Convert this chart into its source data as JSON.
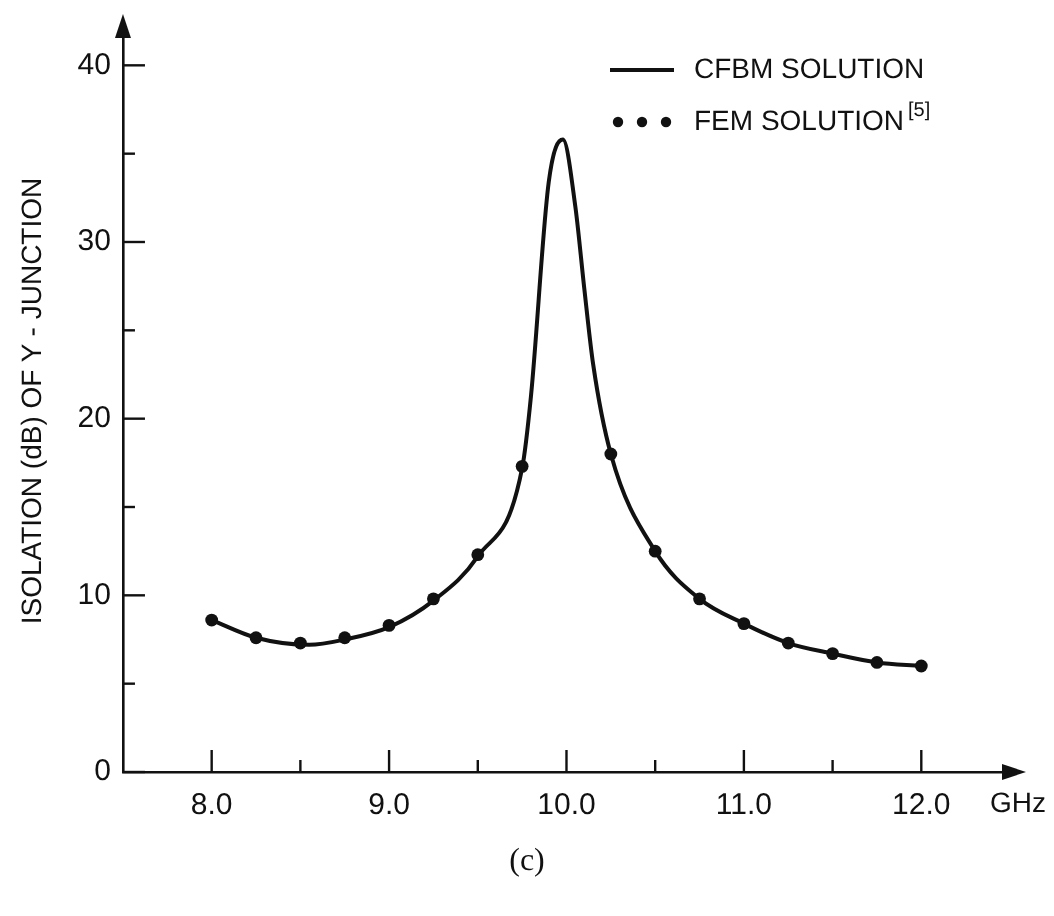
{
  "chart_data": {
    "type": "line",
    "xlabel": "GHz",
    "ylabel": "ISOLATION (dB) OF Y - JUNCTION",
    "annotations": [
      "(c)"
    ],
    "xlim": [
      7.5,
      12.5
    ],
    "ylim": [
      0,
      42
    ],
    "xticks": [
      {
        "value": 8,
        "label": "8.0"
      },
      {
        "value": 8.5,
        "label": null
      },
      {
        "value": 9,
        "label": "9.0"
      },
      {
        "value": 9.5,
        "label": null
      },
      {
        "value": 10,
        "label": "10.0"
      },
      {
        "value": 10.5,
        "label": null
      },
      {
        "value": 11,
        "label": "11.0"
      },
      {
        "value": 11.5,
        "label": null
      },
      {
        "value": 12,
        "label": "12.0"
      }
    ],
    "yticks": [
      0,
      {
        "value": 5,
        "label": null
      },
      10,
      {
        "value": 15,
        "label": null
      },
      20,
      {
        "value": 25,
        "label": null
      },
      30,
      {
        "value": 35,
        "label": null
      },
      40
    ],
    "grid": false,
    "legend": "top right",
    "series": [
      {
        "name": "CFBM SOLUTION",
        "color": "#111111",
        "marker": "none",
        "line_style": "solid",
        "x": [
          8.0,
          8.25,
          8.55,
          8.75,
          9.0,
          9.25,
          9.5,
          9.75,
          9.8,
          9.9,
          9.98,
          10.05,
          10.1,
          10.15,
          10.25,
          10.5,
          10.75,
          11.0,
          11.25,
          11.5,
          11.75,
          12.0
        ],
        "values": [
          8.6,
          7.6,
          7.2,
          7.5,
          8.2,
          9.7,
          12.2,
          17.2,
          21.3,
          33.4,
          35.8,
          32.0,
          27.4,
          23.1,
          18.0,
          12.5,
          9.8,
          8.4,
          7.3,
          6.7,
          6.2,
          6.0
        ]
      },
      {
        "name": "FEM SOLUTION$^{[5]}$",
        "type": "scatter",
        "color": "#111111",
        "marker": "circle",
        "x": [
          8.0,
          8.25,
          8.5,
          8.75,
          9.0,
          9.25,
          9.5,
          9.75,
          10.25,
          10.5,
          10.75,
          11.0,
          11.25,
          11.5,
          11.75,
          12.0
        ],
        "values": [
          8.6,
          7.6,
          7.3,
          7.6,
          8.3,
          9.8,
          12.3,
          17.3,
          18.0,
          12.5,
          9.8,
          8.4,
          7.3,
          6.7,
          6.2,
          6.0
        ]
      }
    ]
  }
}
